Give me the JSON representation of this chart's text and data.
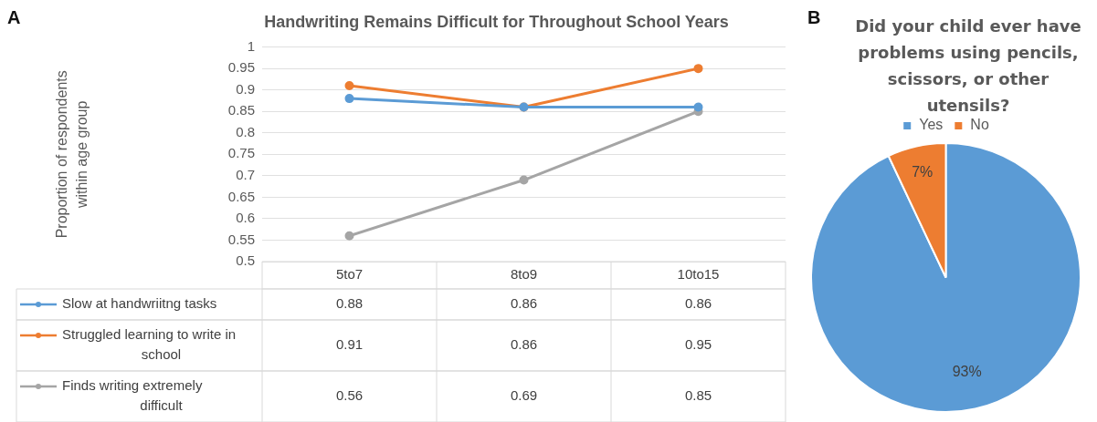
{
  "chart_data": [
    {
      "type": "line",
      "title": "Handwriting Remains Difficult for Throughout School Years",
      "ylabel": "Proportion of respondents within age group",
      "annotations": [
        "A"
      ],
      "categories": [
        "5to7",
        "8to9",
        "10to15"
      ],
      "series": [
        {
          "name": "Slow at handwriitng tasks",
          "color": "#5b9bd5",
          "values": [
            0.88,
            0.86,
            0.86
          ]
        },
        {
          "name": "Struggled learning to write in school",
          "color": "#ed7d31",
          "values": [
            0.91,
            0.86,
            0.95
          ]
        },
        {
          "name": "Finds writing extremely difficult",
          "color": "#a5a5a5",
          "values": [
            0.56,
            0.69,
            0.85
          ]
        }
      ],
      "ylim": [
        0.5,
        1
      ],
      "yticks": [
        0.5,
        0.55,
        0.6,
        0.65,
        0.7,
        0.75,
        0.8,
        0.85,
        0.9,
        0.95,
        1
      ],
      "grid": "y",
      "legend": "bottom",
      "marker": "circle",
      "line_style": "solid",
      "data_labels": true
    },
    {
      "type": "pie",
      "title": "Did your child ever have problems using pencils, scissors, or other utensils?",
      "annotations": [
        "B"
      ],
      "categories": [
        "Yes",
        "No"
      ],
      "values": [
        93,
        7
      ],
      "colors": [
        "#5b9bd5",
        "#ed7d31"
      ],
      "value_labels": [
        "93%",
        "7%"
      ],
      "legend": "top"
    }
  ]
}
